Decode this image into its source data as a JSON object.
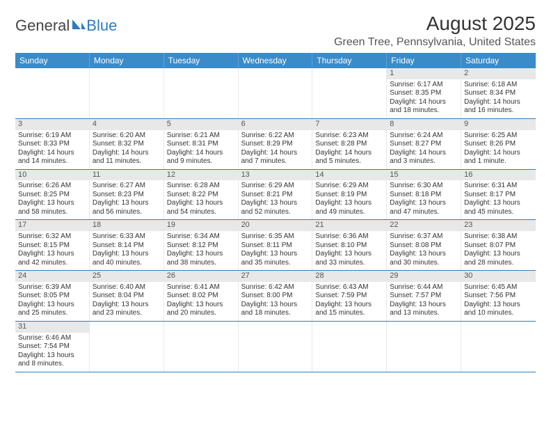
{
  "logo": {
    "general": "General",
    "blue": "Blue"
  },
  "title": "August 2025",
  "location": "Green Tree, Pennsylvania, United States",
  "colors": {
    "header_bg": "#3b8bc8",
    "header_text": "#ffffff",
    "daynum_bg": "#e8e8e8",
    "row_border": "#2f7bbf",
    "text": "#333333"
  },
  "weekdays": [
    "Sunday",
    "Monday",
    "Tuesday",
    "Wednesday",
    "Thursday",
    "Friday",
    "Saturday"
  ],
  "weeks": [
    [
      {
        "n": "",
        "sr": "",
        "ss": "",
        "dl": ""
      },
      {
        "n": "",
        "sr": "",
        "ss": "",
        "dl": ""
      },
      {
        "n": "",
        "sr": "",
        "ss": "",
        "dl": ""
      },
      {
        "n": "",
        "sr": "",
        "ss": "",
        "dl": ""
      },
      {
        "n": "",
        "sr": "",
        "ss": "",
        "dl": ""
      },
      {
        "n": "1",
        "sr": "Sunrise: 6:17 AM",
        "ss": "Sunset: 8:35 PM",
        "dl": "Daylight: 14 hours and 18 minutes."
      },
      {
        "n": "2",
        "sr": "Sunrise: 6:18 AM",
        "ss": "Sunset: 8:34 PM",
        "dl": "Daylight: 14 hours and 16 minutes."
      }
    ],
    [
      {
        "n": "3",
        "sr": "Sunrise: 6:19 AM",
        "ss": "Sunset: 8:33 PM",
        "dl": "Daylight: 14 hours and 14 minutes."
      },
      {
        "n": "4",
        "sr": "Sunrise: 6:20 AM",
        "ss": "Sunset: 8:32 PM",
        "dl": "Daylight: 14 hours and 11 minutes."
      },
      {
        "n": "5",
        "sr": "Sunrise: 6:21 AM",
        "ss": "Sunset: 8:31 PM",
        "dl": "Daylight: 14 hours and 9 minutes."
      },
      {
        "n": "6",
        "sr": "Sunrise: 6:22 AM",
        "ss": "Sunset: 8:29 PM",
        "dl": "Daylight: 14 hours and 7 minutes."
      },
      {
        "n": "7",
        "sr": "Sunrise: 6:23 AM",
        "ss": "Sunset: 8:28 PM",
        "dl": "Daylight: 14 hours and 5 minutes."
      },
      {
        "n": "8",
        "sr": "Sunrise: 6:24 AM",
        "ss": "Sunset: 8:27 PM",
        "dl": "Daylight: 14 hours and 3 minutes."
      },
      {
        "n": "9",
        "sr": "Sunrise: 6:25 AM",
        "ss": "Sunset: 8:26 PM",
        "dl": "Daylight: 14 hours and 1 minute."
      }
    ],
    [
      {
        "n": "10",
        "sr": "Sunrise: 6:26 AM",
        "ss": "Sunset: 8:25 PM",
        "dl": "Daylight: 13 hours and 58 minutes."
      },
      {
        "n": "11",
        "sr": "Sunrise: 6:27 AM",
        "ss": "Sunset: 8:23 PM",
        "dl": "Daylight: 13 hours and 56 minutes."
      },
      {
        "n": "12",
        "sr": "Sunrise: 6:28 AM",
        "ss": "Sunset: 8:22 PM",
        "dl": "Daylight: 13 hours and 54 minutes."
      },
      {
        "n": "13",
        "sr": "Sunrise: 6:29 AM",
        "ss": "Sunset: 8:21 PM",
        "dl": "Daylight: 13 hours and 52 minutes."
      },
      {
        "n": "14",
        "sr": "Sunrise: 6:29 AM",
        "ss": "Sunset: 8:19 PM",
        "dl": "Daylight: 13 hours and 49 minutes."
      },
      {
        "n": "15",
        "sr": "Sunrise: 6:30 AM",
        "ss": "Sunset: 8:18 PM",
        "dl": "Daylight: 13 hours and 47 minutes."
      },
      {
        "n": "16",
        "sr": "Sunrise: 6:31 AM",
        "ss": "Sunset: 8:17 PM",
        "dl": "Daylight: 13 hours and 45 minutes."
      }
    ],
    [
      {
        "n": "17",
        "sr": "Sunrise: 6:32 AM",
        "ss": "Sunset: 8:15 PM",
        "dl": "Daylight: 13 hours and 42 minutes."
      },
      {
        "n": "18",
        "sr": "Sunrise: 6:33 AM",
        "ss": "Sunset: 8:14 PM",
        "dl": "Daylight: 13 hours and 40 minutes."
      },
      {
        "n": "19",
        "sr": "Sunrise: 6:34 AM",
        "ss": "Sunset: 8:12 PM",
        "dl": "Daylight: 13 hours and 38 minutes."
      },
      {
        "n": "20",
        "sr": "Sunrise: 6:35 AM",
        "ss": "Sunset: 8:11 PM",
        "dl": "Daylight: 13 hours and 35 minutes."
      },
      {
        "n": "21",
        "sr": "Sunrise: 6:36 AM",
        "ss": "Sunset: 8:10 PM",
        "dl": "Daylight: 13 hours and 33 minutes."
      },
      {
        "n": "22",
        "sr": "Sunrise: 6:37 AM",
        "ss": "Sunset: 8:08 PM",
        "dl": "Daylight: 13 hours and 30 minutes."
      },
      {
        "n": "23",
        "sr": "Sunrise: 6:38 AM",
        "ss": "Sunset: 8:07 PM",
        "dl": "Daylight: 13 hours and 28 minutes."
      }
    ],
    [
      {
        "n": "24",
        "sr": "Sunrise: 6:39 AM",
        "ss": "Sunset: 8:05 PM",
        "dl": "Daylight: 13 hours and 25 minutes."
      },
      {
        "n": "25",
        "sr": "Sunrise: 6:40 AM",
        "ss": "Sunset: 8:04 PM",
        "dl": "Daylight: 13 hours and 23 minutes."
      },
      {
        "n": "26",
        "sr": "Sunrise: 6:41 AM",
        "ss": "Sunset: 8:02 PM",
        "dl": "Daylight: 13 hours and 20 minutes."
      },
      {
        "n": "27",
        "sr": "Sunrise: 6:42 AM",
        "ss": "Sunset: 8:00 PM",
        "dl": "Daylight: 13 hours and 18 minutes."
      },
      {
        "n": "28",
        "sr": "Sunrise: 6:43 AM",
        "ss": "Sunset: 7:59 PM",
        "dl": "Daylight: 13 hours and 15 minutes."
      },
      {
        "n": "29",
        "sr": "Sunrise: 6:44 AM",
        "ss": "Sunset: 7:57 PM",
        "dl": "Daylight: 13 hours and 13 minutes."
      },
      {
        "n": "30",
        "sr": "Sunrise: 6:45 AM",
        "ss": "Sunset: 7:56 PM",
        "dl": "Daylight: 13 hours and 10 minutes."
      }
    ],
    [
      {
        "n": "31",
        "sr": "Sunrise: 6:46 AM",
        "ss": "Sunset: 7:54 PM",
        "dl": "Daylight: 13 hours and 8 minutes."
      },
      {
        "n": "",
        "sr": "",
        "ss": "",
        "dl": ""
      },
      {
        "n": "",
        "sr": "",
        "ss": "",
        "dl": ""
      },
      {
        "n": "",
        "sr": "",
        "ss": "",
        "dl": ""
      },
      {
        "n": "",
        "sr": "",
        "ss": "",
        "dl": ""
      },
      {
        "n": "",
        "sr": "",
        "ss": "",
        "dl": ""
      },
      {
        "n": "",
        "sr": "",
        "ss": "",
        "dl": ""
      }
    ]
  ]
}
